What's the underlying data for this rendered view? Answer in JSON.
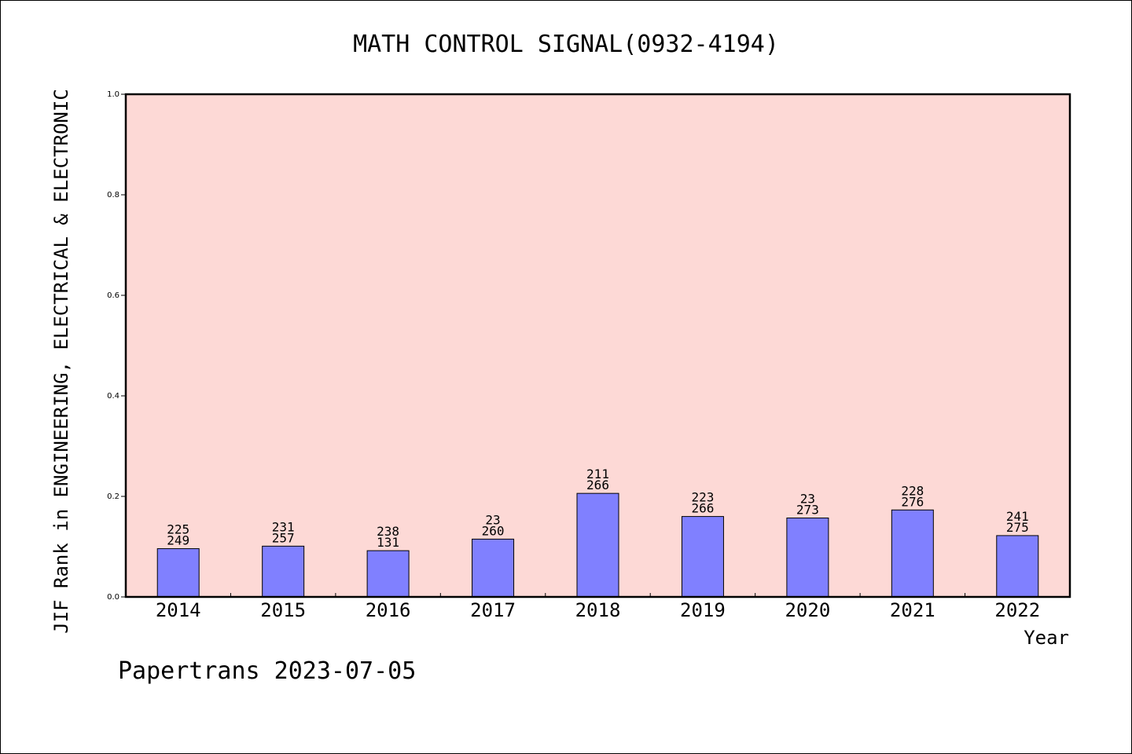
{
  "chart_data": {
    "type": "bar",
    "title": "MATH CONTROL SIGNAL(0932-4194)",
    "xlabel": "Year",
    "ylabel": "JIF Rank in ENGINEERING, ELECTRICAL & ELECTRONIC",
    "ylim": [
      0,
      1.0
    ],
    "yticks": [
      "0.0",
      "0.2",
      "0.4",
      "0.6",
      "0.8",
      "1.0"
    ],
    "grid": false,
    "categories": [
      "2014",
      "2015",
      "2016",
      "2017",
      "2018",
      "2019",
      "2020",
      "2021",
      "2022"
    ],
    "values": [
      0.096,
      0.101,
      0.092,
      0.115,
      0.206,
      0.16,
      0.157,
      0.173,
      0.122
    ],
    "labels_top": [
      "225",
      "231",
      "238",
      "23",
      "211",
      "223",
      "23",
      "228",
      "241"
    ],
    "labels_bottom": [
      "249",
      "257",
      "131",
      "260",
      "266",
      "266",
      "273",
      "276",
      "275"
    ],
    "colors": {
      "plot_background": "#fdd9d6",
      "bar": "#8080ff"
    }
  },
  "footer": "Papertrans 2023-07-05"
}
